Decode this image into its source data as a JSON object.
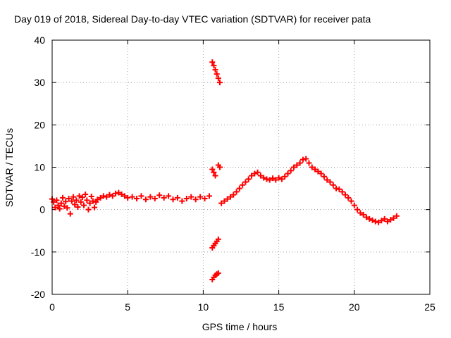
{
  "chart_data": {
    "type": "scatter",
    "title": "Day 019 of 2018, Sidereal Day-to-day VTEC variation (SDTVAR) for receiver pata",
    "xlabel": "GPS time / hours",
    "ylabel": "SDTVAR / TECUs",
    "xlim": [
      0,
      25
    ],
    "ylim": [
      -20,
      40
    ],
    "xticks": [
      0,
      5,
      10,
      15,
      20,
      25
    ],
    "yticks": [
      -20,
      -10,
      0,
      10,
      20,
      30,
      40
    ],
    "xtick_labels": [
      "0",
      "5",
      "10",
      "15",
      "20",
      "25"
    ],
    "ytick_labels": [
      "-20",
      "-10",
      "0",
      "10",
      "20",
      "30",
      "40"
    ],
    "grid": true,
    "marker": "+",
    "color": "#ff0000",
    "series": [
      {
        "name": "SDTVAR",
        "points": [
          [
            0.0,
            2.5
          ],
          [
            0.1,
            1.8
          ],
          [
            0.2,
            0.5
          ],
          [
            0.3,
            2.2
          ],
          [
            0.4,
            1.0
          ],
          [
            0.5,
            0.2
          ],
          [
            0.6,
            1.5
          ],
          [
            0.7,
            2.8
          ],
          [
            0.8,
            0.8
          ],
          [
            0.9,
            1.9
          ],
          [
            1.0,
            0.4
          ],
          [
            1.1,
            2.6
          ],
          [
            1.2,
            -1.0
          ],
          [
            1.3,
            2.0
          ],
          [
            1.4,
            3.0
          ],
          [
            1.5,
            1.2
          ],
          [
            1.6,
            2.2
          ],
          [
            1.7,
            0.6
          ],
          [
            1.8,
            3.2
          ],
          [
            1.9,
            1.8
          ],
          [
            2.0,
            2.9
          ],
          [
            2.1,
            1.0
          ],
          [
            2.2,
            3.6
          ],
          [
            2.3,
            2.2
          ],
          [
            2.4,
            0.0
          ],
          [
            2.5,
            1.5
          ],
          [
            2.6,
            3.1
          ],
          [
            2.7,
            2.0
          ],
          [
            2.8,
            0.5
          ],
          [
            2.9,
            1.8
          ],
          [
            3.0,
            2.4
          ],
          [
            3.2,
            2.8
          ],
          [
            3.4,
            3.2
          ],
          [
            3.6,
            3.0
          ],
          [
            3.8,
            3.5
          ],
          [
            4.0,
            3.2
          ],
          [
            4.2,
            3.8
          ],
          [
            4.4,
            4.0
          ],
          [
            4.6,
            3.6
          ],
          [
            4.8,
            3.2
          ],
          [
            5.0,
            2.8
          ],
          [
            5.3,
            3.0
          ],
          [
            5.6,
            2.6
          ],
          [
            5.9,
            3.2
          ],
          [
            6.2,
            2.4
          ],
          [
            6.5,
            3.0
          ],
          [
            6.8,
            2.6
          ],
          [
            7.1,
            3.4
          ],
          [
            7.4,
            2.8
          ],
          [
            7.7,
            3.2
          ],
          [
            8.0,
            2.4
          ],
          [
            8.3,
            2.8
          ],
          [
            8.6,
            2.0
          ],
          [
            8.9,
            2.6
          ],
          [
            9.2,
            3.0
          ],
          [
            9.5,
            2.4
          ],
          [
            9.8,
            3.0
          ],
          [
            10.1,
            2.6
          ],
          [
            10.4,
            3.2
          ],
          [
            10.6,
            34.8
          ],
          [
            10.7,
            34.0
          ],
          [
            10.8,
            33.0
          ],
          [
            10.9,
            32.0
          ],
          [
            11.0,
            31.0
          ],
          [
            11.1,
            30.0
          ],
          [
            10.6,
            9.5
          ],
          [
            10.7,
            8.8
          ],
          [
            10.8,
            8.0
          ],
          [
            11.0,
            10.5
          ],
          [
            11.1,
            10.0
          ],
          [
            10.6,
            -9.0
          ],
          [
            10.7,
            -8.5
          ],
          [
            10.8,
            -8.0
          ],
          [
            10.9,
            -7.5
          ],
          [
            11.0,
            -7.0
          ],
          [
            10.6,
            -16.5
          ],
          [
            10.7,
            -16.0
          ],
          [
            10.8,
            -15.5
          ],
          [
            10.9,
            -15.2
          ],
          [
            11.0,
            -15.0
          ],
          [
            11.2,
            1.5
          ],
          [
            11.4,
            2.0
          ],
          [
            11.6,
            2.5
          ],
          [
            11.8,
            3.0
          ],
          [
            12.0,
            3.5
          ],
          [
            12.2,
            4.2
          ],
          [
            12.4,
            5.0
          ],
          [
            12.6,
            5.8
          ],
          [
            12.8,
            6.5
          ],
          [
            13.0,
            7.2
          ],
          [
            13.2,
            8.0
          ],
          [
            13.4,
            8.5
          ],
          [
            13.6,
            8.8
          ],
          [
            13.8,
            8.0
          ],
          [
            14.0,
            7.5
          ],
          [
            14.2,
            7.2
          ],
          [
            14.4,
            7.0
          ],
          [
            14.6,
            7.4
          ],
          [
            14.8,
            7.0
          ],
          [
            15.0,
            7.5
          ],
          [
            15.2,
            7.2
          ],
          [
            15.4,
            7.8
          ],
          [
            15.6,
            8.5
          ],
          [
            15.8,
            9.2
          ],
          [
            16.0,
            10.0
          ],
          [
            16.2,
            10.5
          ],
          [
            16.4,
            11.0
          ],
          [
            16.6,
            11.8
          ],
          [
            16.8,
            12.0
          ],
          [
            17.0,
            11.0
          ],
          [
            17.2,
            10.0
          ],
          [
            17.4,
            9.5
          ],
          [
            17.6,
            9.0
          ],
          [
            17.8,
            8.5
          ],
          [
            18.0,
            7.8
          ],
          [
            18.2,
            7.0
          ],
          [
            18.4,
            6.5
          ],
          [
            18.6,
            5.8
          ],
          [
            18.8,
            5.0
          ],
          [
            19.0,
            4.8
          ],
          [
            19.2,
            4.2
          ],
          [
            19.4,
            3.5
          ],
          [
            19.6,
            2.8
          ],
          [
            19.8,
            2.0
          ],
          [
            20.0,
            1.0
          ],
          [
            20.2,
            0.0
          ],
          [
            20.4,
            -0.8
          ],
          [
            20.6,
            -1.2
          ],
          [
            20.8,
            -1.8
          ],
          [
            21.0,
            -2.2
          ],
          [
            21.2,
            -2.5
          ],
          [
            21.4,
            -2.8
          ],
          [
            21.6,
            -3.0
          ],
          [
            21.8,
            -2.6
          ],
          [
            22.0,
            -2.2
          ],
          [
            22.2,
            -2.8
          ],
          [
            22.4,
            -2.4
          ],
          [
            22.6,
            -2.0
          ],
          [
            22.8,
            -1.5
          ]
        ]
      }
    ]
  }
}
